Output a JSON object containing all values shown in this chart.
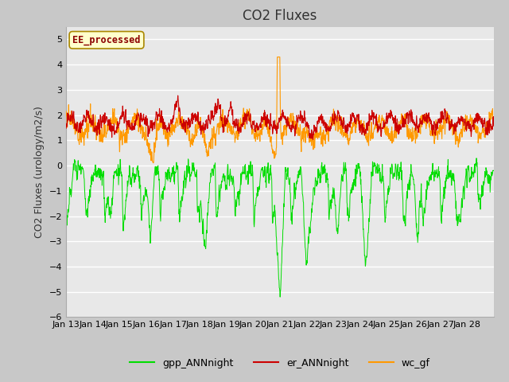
{
  "title": "CO2 Fluxes",
  "ylabel": "CO2 Fluxes (urology/m2/s)",
  "ylim": [
    -6.0,
    5.5
  ],
  "yticks": [
    -6.0,
    -5.0,
    -4.0,
    -3.0,
    -2.0,
    -1.0,
    0.0,
    1.0,
    2.0,
    3.0,
    4.0,
    5.0
  ],
  "xtick_labels": [
    "Jan 13",
    "Jan 14",
    "Jan 15",
    "Jan 16",
    "Jan 17",
    "Jan 18",
    "Jan 19",
    "Jan 20",
    "Jan 21",
    "Jan 22",
    "Jan 23",
    "Jan 24",
    "Jan 25",
    "Jan 26",
    "Jan 27",
    "Jan 28"
  ],
  "colors": {
    "gpp": "#00dd00",
    "er": "#cc0000",
    "wc": "#ff9900"
  },
  "legend_labels": [
    "gpp_ANNnight",
    "er_ANNnight",
    "wc_gf"
  ],
  "annotation_text": "EE_processed",
  "annotation_color": "#8b0000",
  "annotation_bg": "#ffffcc",
  "fig_facecolor": "#c8c8c8",
  "ax_facecolor": "#e8e8e8",
  "grid_color": "#ffffff",
  "title_fontsize": 12,
  "axis_fontsize": 9,
  "tick_fontsize": 8,
  "n_days": 16,
  "n_per_day": 96
}
